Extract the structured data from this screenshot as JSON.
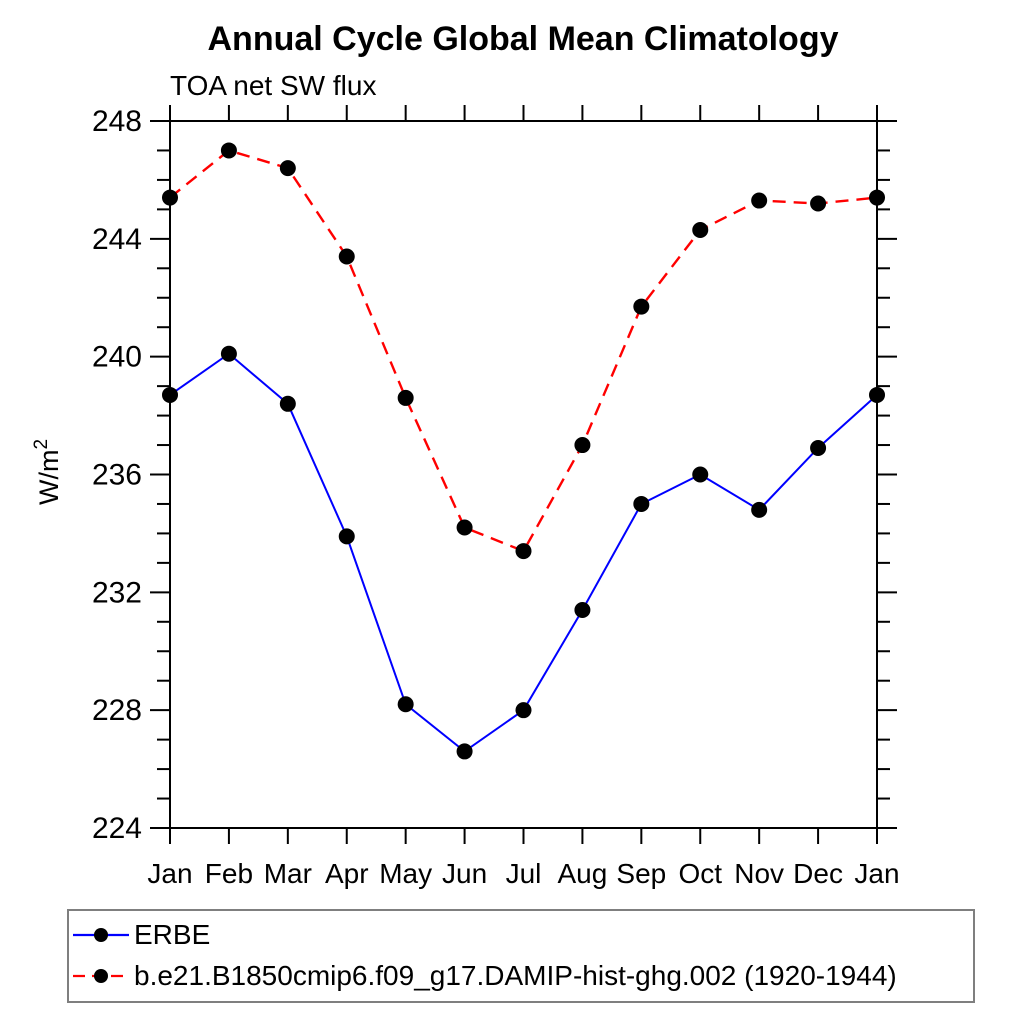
{
  "page": {
    "background_color": "#ffffff",
    "text_color": "#000000"
  },
  "chart_data": {
    "type": "line",
    "title": "Annual Cycle Global Mean Climatology",
    "subtitle": "TOA net SW flux",
    "ylabel": {
      "base": "W/m",
      "superscript": "2"
    },
    "categories": [
      "Jan",
      "Feb",
      "Mar",
      "Apr",
      "May",
      "Jun",
      "Jul",
      "Aug",
      "Sep",
      "Oct",
      "Nov",
      "Dec",
      "Jan"
    ],
    "ylim": [
      224,
      248
    ],
    "ytick_major_step": 4,
    "ytick_minor_step": 1,
    "ytick_major_labels": [
      "224",
      "228",
      "232",
      "236",
      "240",
      "244",
      "248"
    ],
    "grid": false,
    "legend_position": "bottom",
    "marker": {
      "shape": "circle",
      "color": "#000000"
    },
    "series": [
      {
        "name": "ERBE",
        "color": "#0000ff",
        "line_style": "solid",
        "values": [
          238.7,
          240.1,
          238.4,
          233.9,
          228.2,
          226.6,
          228.0,
          231.4,
          235.0,
          236.0,
          234.8,
          236.9,
          238.7
        ]
      },
      {
        "name": "b.e21.B1850cmip6.f09_g17.DAMIP-hist-ghg.002 (1920-1944)",
        "color": "#ff0000",
        "line_style": "dashed",
        "values": [
          245.4,
          247.0,
          246.4,
          243.4,
          238.6,
          234.2,
          233.4,
          237.0,
          241.7,
          244.3,
          245.3,
          245.2,
          245.4
        ]
      }
    ]
  }
}
